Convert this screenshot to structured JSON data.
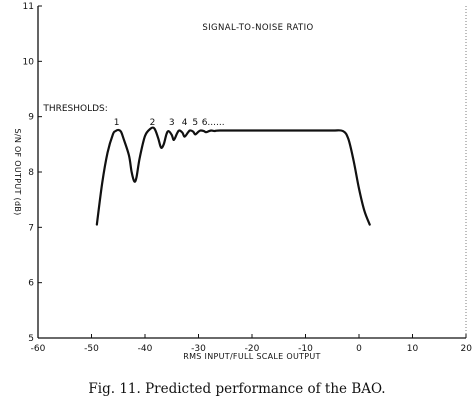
{
  "chart_data": {
    "type": "line",
    "title": "SIGNAL-TO-NOISE RATIO",
    "xlabel": "RMS INPUT/FULL SCALE OUTPUT",
    "ylabel": "S/N OF OUTPUT (dB)",
    "xlim": [
      -60,
      20
    ],
    "ylim": [
      5,
      11
    ],
    "x_ticks": [
      -60,
      -50,
      -40,
      -30,
      -20,
      -10,
      0,
      10,
      20
    ],
    "x_tick_labels": [
      "-60",
      "-50",
      "-40",
      "-30",
      "-20",
      "-10",
      "0",
      "10",
      "20"
    ],
    "y_ticks": [
      5,
      6,
      7,
      8,
      9,
      10,
      11
    ],
    "y_tick_labels": [
      "5",
      "6",
      "7",
      "8",
      "9",
      "10",
      "11"
    ],
    "grid": false,
    "annotations": [
      {
        "text": "THRESHOLDS:",
        "x": -59,
        "y": 9.1
      },
      {
        "text": "1",
        "x": -45.3,
        "y": 8.85
      },
      {
        "text": "2",
        "x": -38.6,
        "y": 8.85
      },
      {
        "text": "3",
        "x": -35.0,
        "y": 8.85
      },
      {
        "text": "4",
        "x": -32.6,
        "y": 8.85
      },
      {
        "text": "5",
        "x": -30.6,
        "y": 8.85
      },
      {
        "text": "6......",
        "x": -29.4,
        "y": 8.85
      }
    ],
    "series": [
      {
        "x": [
          -49.0,
          -48.0,
          -47.0,
          -46.0,
          -45.5,
          -45.0,
          -44.5,
          -44.0,
          -43.0,
          -42.5,
          -42.0,
          -41.6,
          -41.0,
          -40.0,
          -39.0,
          -38.4,
          -38.0,
          -37.5,
          -37.0,
          -36.5,
          -36.0,
          -35.6,
          -35.0,
          -34.6,
          -34.0,
          -33.6,
          -33.0,
          -32.6,
          -32.0,
          -31.6,
          -31.0,
          -30.6,
          -30.0,
          -29.6,
          -29.0,
          -28.6,
          -28.0,
          -27.6,
          -27.0,
          -26.0,
          -20.0,
          -10.0,
          -5.0,
          -3.0,
          -2.0,
          -1.0,
          0.0,
          1.0,
          2.0
        ],
        "y": [
          7.05,
          7.8,
          8.35,
          8.68,
          8.74,
          8.76,
          8.73,
          8.6,
          8.3,
          8.0,
          7.83,
          7.9,
          8.25,
          8.65,
          8.78,
          8.8,
          8.74,
          8.6,
          8.44,
          8.5,
          8.68,
          8.74,
          8.67,
          8.58,
          8.7,
          8.75,
          8.71,
          8.64,
          8.71,
          8.75,
          8.73,
          8.68,
          8.73,
          8.75,
          8.74,
          8.72,
          8.74,
          8.75,
          8.74,
          8.75,
          8.75,
          8.75,
          8.75,
          8.74,
          8.6,
          8.2,
          7.7,
          7.3,
          7.05
        ]
      }
    ]
  },
  "caption": "Fig. 11. Predicted performance of the BAO."
}
